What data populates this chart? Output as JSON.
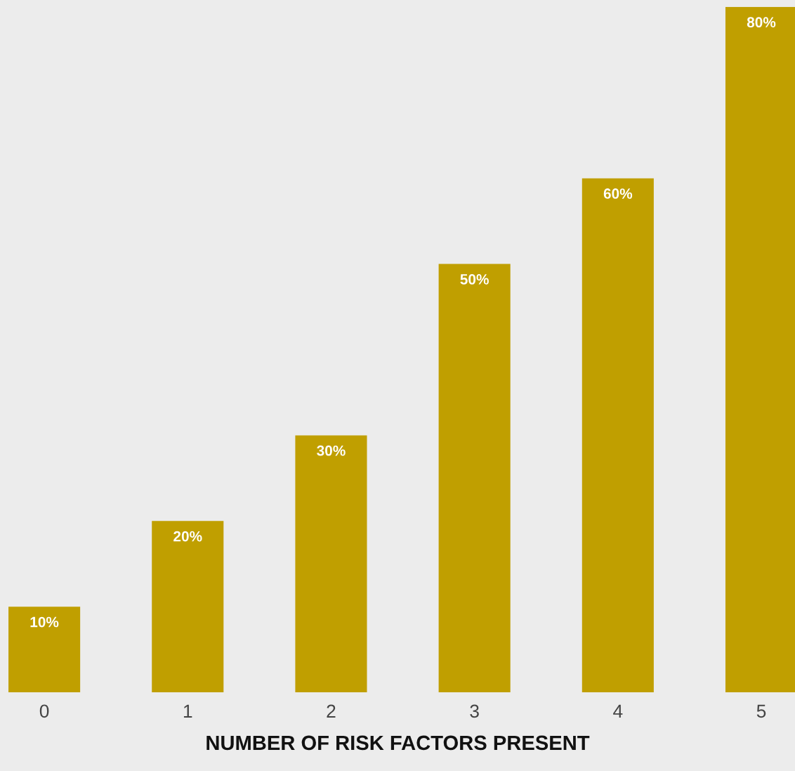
{
  "chart_data": {
    "type": "bar",
    "xlabel": "NUMBER OF RISK FACTORS PRESENT",
    "categories": [
      "0",
      "1",
      "2",
      "3",
      "4",
      "5"
    ],
    "values": [
      10,
      20,
      30,
      50,
      60,
      80
    ],
    "value_labels": [
      "10%",
      "20%",
      "30%",
      "50%",
      "60%",
      "80%"
    ],
    "color": "#c09f00",
    "grid": false,
    "legend": false
  }
}
